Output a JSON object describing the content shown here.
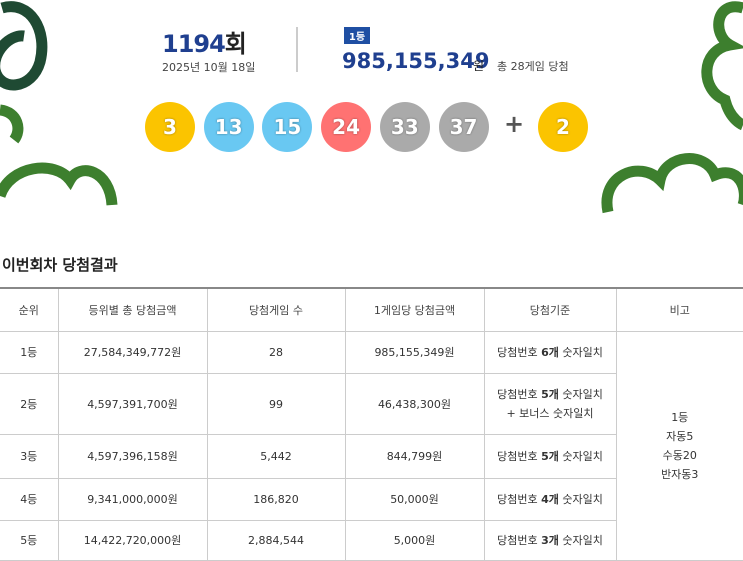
{
  "draw": {
    "round": "1194",
    "round_suffix": "회",
    "date": "2025년 10월 18일",
    "rank_badge": "1등",
    "prize": "985,155,349",
    "prize_unit": "원",
    "winners": "총 28게임 당첨",
    "numbers": [
      "3",
      "13",
      "15",
      "24",
      "33",
      "37"
    ],
    "plus": "+",
    "bonus": "2"
  },
  "section_title": "이번회차 당첨결과",
  "table": {
    "headers": [
      "순위",
      "등위별 총 당첨금액",
      "당첨게임 수",
      "1게임당 당첨금액",
      "당첨기준",
      "비고"
    ],
    "rows": [
      {
        "rank": "1등",
        "total": "27,584,349,772원",
        "games": "28",
        "per_game": "985,155,349원",
        "criteria": [
          [
            "당첨번호 ",
            "6개",
            " 숫자일치"
          ]
        ]
      },
      {
        "rank": "2등",
        "total": "4,597,391,700원",
        "games": "99",
        "per_game": "46,438,300원",
        "criteria": [
          [
            "당첨번호 ",
            "5개",
            " 숫자일치"
          ],
          [
            "+ 보너스 숫자일치"
          ]
        ]
      },
      {
        "rank": "3등",
        "total": "4,597,396,158원",
        "games": "5,442",
        "per_game": "844,799원",
        "criteria": [
          [
            "당첨번호 ",
            "5개",
            " 숫자일치"
          ]
        ]
      },
      {
        "rank": "4등",
        "total": "9,341,000,000원",
        "games": "186,820",
        "per_game": "50,000원",
        "criteria": [
          [
            "당첨번호 ",
            "4개",
            " 숫자일치"
          ]
        ]
      },
      {
        "rank": "5등",
        "total": "14,422,720,000원",
        "games": "2,884,544",
        "per_game": "5,000원",
        "criteria": [
          [
            "당첨번호 ",
            "3개",
            " 숫자일치"
          ]
        ]
      }
    ],
    "note": [
      "1등",
      "자동5",
      "수동20",
      "반자동3"
    ]
  }
}
